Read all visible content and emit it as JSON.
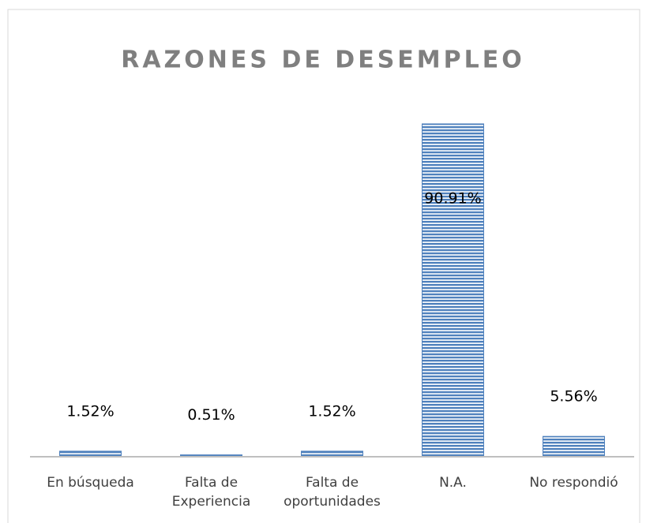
{
  "chart_data": {
    "type": "bar",
    "title": "RAZONES DE DESEMPLEO",
    "categories": [
      "En búsqueda",
      "Falta de Experiencia",
      "Falta de oportunidades",
      "N.A.",
      "No respondió"
    ],
    "values": [
      1.52,
      0.51,
      1.52,
      90.91,
      5.56
    ],
    "value_labels": [
      "1.52%",
      "0.51%",
      "1.52%",
      "90.91%",
      "5.56%"
    ],
    "color": "#4f81bd"
  }
}
